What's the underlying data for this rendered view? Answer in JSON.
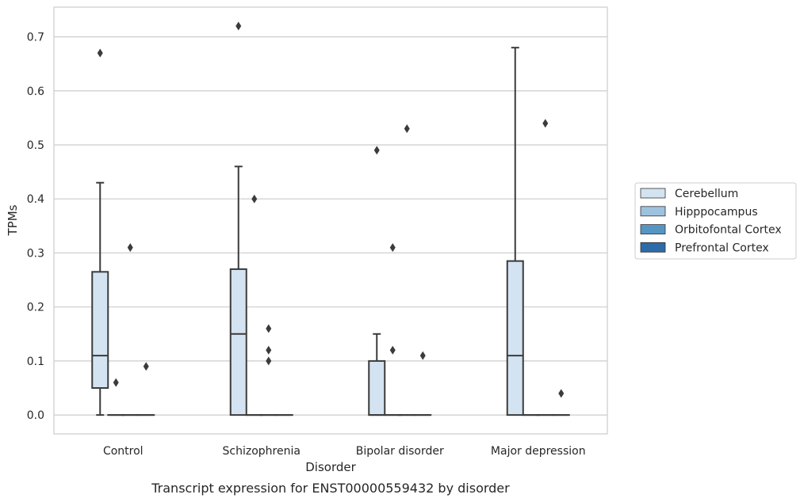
{
  "chart_data": {
    "type": "box",
    "caption": "Transcript expression for ENST00000559432 by disorder",
    "xlabel": "Disorder",
    "ylabel": "TPMs",
    "ylim": [
      -0.035,
      0.755
    ],
    "yticks": [
      "0.0",
      "0.1",
      "0.2",
      "0.3",
      "0.4",
      "0.5",
      "0.6",
      "0.7"
    ],
    "grid": "horizontal",
    "legend_position": "right",
    "categories": [
      "Control",
      "Schizophrenia",
      "Bipolar disorder",
      "Major depression"
    ],
    "series": [
      {
        "name": "Cerebellum",
        "color": "#d4e3f1",
        "boxes": [
          {
            "whislo": 0.0,
            "q1": 0.05,
            "med": 0.11,
            "q3": 0.265,
            "whishi": 0.43,
            "fliers": [
              0.67
            ]
          },
          {
            "whislo": 0.0,
            "q1": 0.0,
            "med": 0.15,
            "q3": 0.27,
            "whishi": 0.46,
            "fliers": [
              0.72
            ]
          },
          {
            "whislo": 0.0,
            "q1": 0.0,
            "med": 0.0,
            "q3": 0.1,
            "whishi": 0.15,
            "fliers": [
              0.49
            ]
          },
          {
            "whislo": 0.0,
            "q1": 0.0,
            "med": 0.11,
            "q3": 0.285,
            "whishi": 0.68,
            "fliers": []
          }
        ]
      },
      {
        "name": "Hipppocampus",
        "color": "#9dc2de",
        "boxes": [
          {
            "whislo": 0.0,
            "q1": 0.0,
            "med": 0.0,
            "q3": 0.0,
            "whishi": 0.0,
            "fliers": [
              0.06
            ]
          },
          {
            "whislo": 0.0,
            "q1": 0.0,
            "med": 0.0,
            "q3": 0.0,
            "whishi": 0.0,
            "fliers": [
              0.4
            ]
          },
          {
            "whislo": 0.0,
            "q1": 0.0,
            "med": 0.0,
            "q3": 0.0,
            "whishi": 0.0,
            "fliers": [
              0.31,
              0.12
            ]
          },
          {
            "whislo": 0.0,
            "q1": 0.0,
            "med": 0.0,
            "q3": 0.0,
            "whishi": 0.0,
            "fliers": []
          }
        ]
      },
      {
        "name": "Orbitofontal Cortex",
        "color": "#5595c4",
        "boxes": [
          {
            "whislo": 0.0,
            "q1": 0.0,
            "med": 0.0,
            "q3": 0.0,
            "whishi": 0.0,
            "fliers": [
              0.31
            ]
          },
          {
            "whislo": 0.0,
            "q1": 0.0,
            "med": 0.0,
            "q3": 0.0,
            "whishi": 0.0,
            "fliers": [
              0.16,
              0.12,
              0.1
            ]
          },
          {
            "whislo": 0.0,
            "q1": 0.0,
            "med": 0.0,
            "q3": 0.0,
            "whishi": 0.0,
            "fliers": [
              0.53
            ]
          },
          {
            "whislo": 0.0,
            "q1": 0.0,
            "med": 0.0,
            "q3": 0.0,
            "whishi": 0.0,
            "fliers": [
              0.54
            ]
          }
        ]
      },
      {
        "name": "Prefrontal Cortex",
        "color": "#2c6ca8",
        "boxes": [
          {
            "whislo": 0.0,
            "q1": 0.0,
            "med": 0.0,
            "q3": 0.0,
            "whishi": 0.0,
            "fliers": [
              0.09
            ]
          },
          {
            "whislo": 0.0,
            "q1": 0.0,
            "med": 0.0,
            "q3": 0.0,
            "whishi": 0.0,
            "fliers": []
          },
          {
            "whislo": 0.0,
            "q1": 0.0,
            "med": 0.0,
            "q3": 0.0,
            "whishi": 0.0,
            "fliers": [
              0.11
            ]
          },
          {
            "whislo": 0.0,
            "q1": 0.0,
            "med": 0.0,
            "q3": 0.0,
            "whishi": 0.0,
            "fliers": [
              0.04
            ]
          }
        ]
      }
    ]
  }
}
